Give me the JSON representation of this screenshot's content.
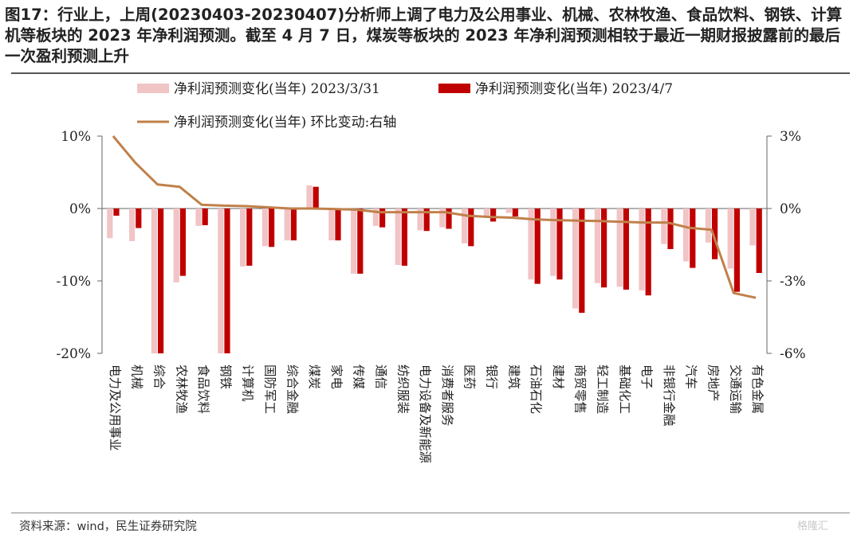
{
  "title": "图17：行业上，上周(20230403-20230407)分析师上调了电力及公用事业、机械、农林牧渔、食品饮料、钢铁、计算机等板块的 2023 年净利润预测。截至 4 月 7 日，煤炭等板块的 2023 年净利润预测相较于最近一期财报披露前的最后一次盈利预测上升",
  "source": "资料来源：wind，民生证券研究院",
  "watermark": "格隆汇",
  "colors": {
    "series1": "#f1c4c6",
    "series2": "#c00000",
    "line": "#c0804a"
  },
  "chart_data": {
    "type": "bar",
    "categories": [
      "电力及公用事业",
      "机械",
      "综合",
      "农林牧渔",
      "食品饮料",
      "钢铁",
      "计算机",
      "国防军工",
      "综合金融",
      "煤炭",
      "家电",
      "传媒",
      "通信",
      "纺织服装",
      "电力设备及新能源",
      "消费者服务",
      "医药",
      "银行",
      "建筑",
      "石油石化",
      "建材",
      "商贸零售",
      "轻工制造",
      "基础化工",
      "电子",
      "非银行金融",
      "汽车",
      "房地产",
      "交通运输",
      "有色金属"
    ],
    "series": [
      {
        "name": "净利润预测变化(当年) 2023/3/31",
        "axis": "left",
        "values": [
          -4.1,
          -4.5,
          -20.0,
          -10.2,
          -2.4,
          -20.0,
          -8.0,
          -5.2,
          -4.4,
          3.2,
          -4.4,
          -9.0,
          -2.4,
          -7.8,
          -3.0,
          -2.6,
          -4.8,
          -1.0,
          -0.6,
          -9.8,
          -9.3,
          -13.8,
          -10.3,
          -10.8,
          -11.3,
          -4.9,
          -7.3,
          -4.7,
          -8.3,
          -5.1
        ]
      },
      {
        "name": "净利润预测变化(当年) 2023/4/7",
        "axis": "left",
        "values": [
          -1.0,
          -2.7,
          -20.0,
          -9.3,
          -2.3,
          -20.0,
          -7.9,
          -5.3,
          -4.4,
          3.0,
          -4.4,
          -9.0,
          -2.6,
          -7.9,
          -3.1,
          -2.8,
          -5.2,
          -1.8,
          -1.1,
          -10.4,
          -9.8,
          -14.4,
          -10.9,
          -11.2,
          -12.0,
          -5.6,
          -8.2,
          -7.0,
          -11.5,
          -8.9
        ]
      },
      {
        "name": "净利润预测变化(当年) 环比变动:右轴",
        "axis": "right",
        "type": "line",
        "values": [
          3.0,
          1.9,
          1.0,
          0.9,
          0.15,
          0.12,
          0.1,
          0.05,
          0.0,
          0.0,
          -0.02,
          -0.05,
          -0.15,
          -0.15,
          -0.15,
          -0.15,
          -0.3,
          -0.35,
          -0.38,
          -0.45,
          -0.48,
          -0.5,
          -0.52,
          -0.55,
          -0.58,
          -0.58,
          -0.8,
          -0.88,
          -3.5,
          -3.7
        ]
      }
    ],
    "yleft": {
      "lim": [
        -20,
        10
      ],
      "ticks": [
        10,
        0,
        -10,
        -20
      ],
      "tick_labels": [
        "10%",
        "0%",
        "-10%",
        "-20%"
      ]
    },
    "yright": {
      "lim": [
        -6,
        3
      ],
      "ticks": [
        3,
        0,
        -3,
        -6
      ],
      "tick_labels": [
        "3%",
        "0%",
        "-3%",
        "-6%"
      ]
    },
    "legend": "top"
  }
}
